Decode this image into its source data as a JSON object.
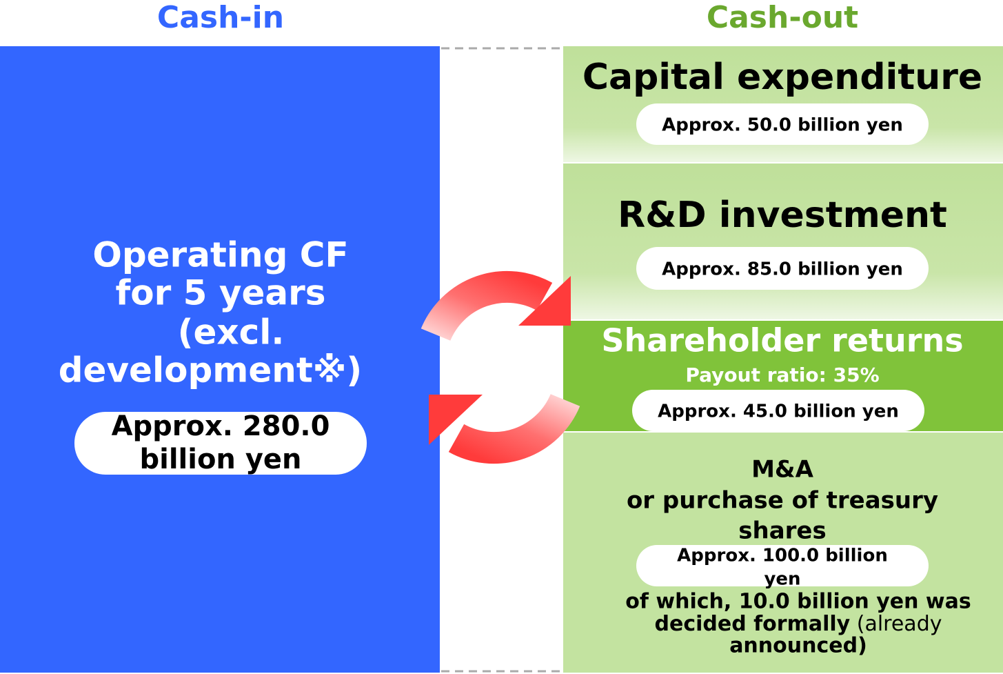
{
  "cash_in": {
    "heading": "Cash-in",
    "title_lines": [
      "Operating CF",
      "for 5 years",
      "(excl.",
      "development※)"
    ],
    "amount_lines": [
      "Approx. 280.0",
      "billion yen"
    ]
  },
  "cash_out": {
    "heading": "Cash-out",
    "capex": {
      "title": "Capital expenditure",
      "amount": "Approx. 50.0 billion yen"
    },
    "rnd": {
      "title": "R&D investment",
      "amount": "Approx. 85.0 billion yen"
    },
    "shareholder": {
      "title": "Shareholder returns",
      "subtitle": "Payout ratio: 35%",
      "amount": "Approx. 45.0 billion yen"
    },
    "mna": {
      "title_lines": [
        "M&A",
        "or purchase of treasury",
        "shares"
      ],
      "amount_lines": [
        "Approx. 100.0 billion",
        "yen"
      ],
      "note_line1": "of which, 10.0 billion yen was",
      "note_line2_bold": "decided formally",
      "note_line2_normal": " (already",
      "note_line3": "announced)"
    }
  }
}
